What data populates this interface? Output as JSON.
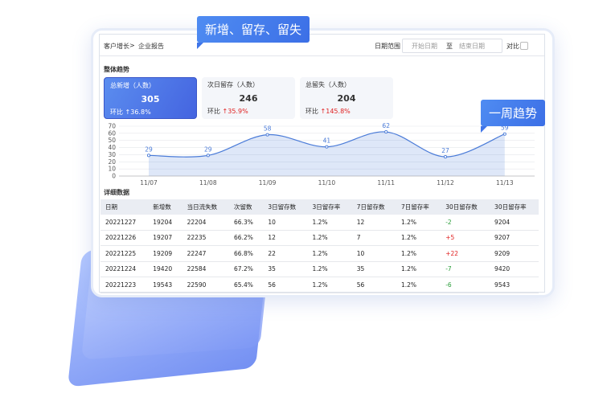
{
  "breadcrumb": {
    "root": "客户增长",
    "separator": ">",
    "current": "企业报告"
  },
  "filters": {
    "label": "日期范围",
    "start_placeholder": "开始日期",
    "to": "至",
    "end_placeholder": "结束日期",
    "compare": "对比"
  },
  "callouts": {
    "top": "新增、留存、留失",
    "right": "一周趋势"
  },
  "sections": {
    "trend": "整体趋势",
    "detail": "详细数据"
  },
  "kpis": [
    {
      "label": "总新增（人数）",
      "value": "305",
      "change_label": "环比",
      "change": "↑36.8%"
    },
    {
      "label": "次日留存（人数）",
      "value": "246",
      "change_label": "环比",
      "change": "↑35.9%"
    },
    {
      "label": "总留失（人数）",
      "value": "204",
      "change_label": "环比",
      "change": "↑145.8%"
    }
  ],
  "chart_data": {
    "type": "line",
    "categories": [
      "11/07",
      "11/08",
      "11/09",
      "11/10",
      "11/11",
      "11/12",
      "11/13"
    ],
    "values": [
      29,
      29,
      58,
      41,
      62,
      27,
      59
    ],
    "color": "#4a7bd8",
    "ylim": [
      0,
      70
    ],
    "yticks": [
      0,
      10,
      20,
      30,
      40,
      50,
      60,
      70
    ],
    "grid": true
  },
  "table": {
    "columns": [
      "日期",
      "新增数",
      "当日流失数",
      "次留数",
      "3日留存数",
      "3日留存率",
      "7日留存数",
      "7日留存率",
      "30日留存数",
      "30日留存率"
    ],
    "rows": [
      [
        "20221227",
        "19204",
        "22204",
        "66.3%",
        "10",
        "1.2%",
        "12",
        "1.2%",
        "-2",
        "9204"
      ],
      [
        "20221226",
        "19207",
        "22235",
        "66.2%",
        "12",
        "1.2%",
        "7",
        "1.2%",
        "+5",
        "9207"
      ],
      [
        "20221225",
        "19209",
        "22247",
        "66.8%",
        "22",
        "1.2%",
        "10",
        "1.2%",
        "+22",
        "9209"
      ],
      [
        "20221224",
        "19420",
        "22584",
        "67.2%",
        "35",
        "1.2%",
        "35",
        "1.2%",
        "-7",
        "9420"
      ],
      [
        "20221223",
        "19543",
        "22590",
        "65.4%",
        "56",
        "1.2%",
        "56",
        "1.2%",
        "-6",
        "9543"
      ]
    ]
  }
}
